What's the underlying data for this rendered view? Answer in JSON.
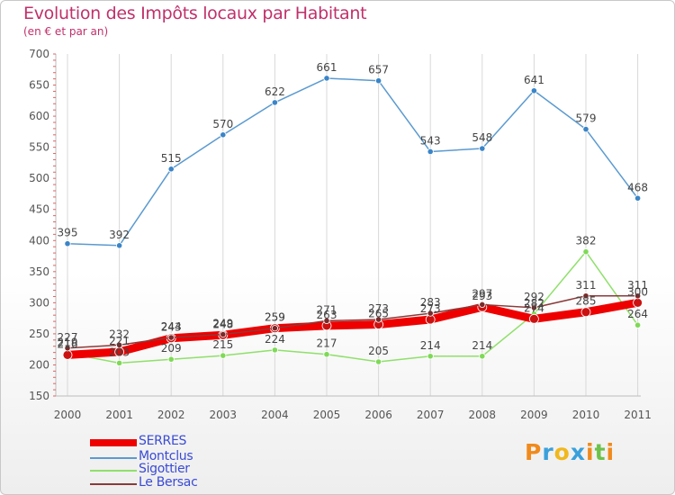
{
  "chart_data": {
    "type": "line",
    "title": "Evolution des Impôts locaux par Habitant",
    "subtitle": "(en € et par an)",
    "categories": [
      "2000",
      "2001",
      "2002",
      "2003",
      "2004",
      "2005",
      "2006",
      "2007",
      "2008",
      "2009",
      "2010",
      "2011"
    ],
    "y_ticks": [
      "150",
      "200",
      "250",
      "300",
      "350",
      "400",
      "450",
      "500",
      "550",
      "600",
      "650",
      "700"
    ],
    "ylim": [
      150,
      700
    ],
    "series": [
      {
        "name": "SERRES",
        "color": "#ee0000",
        "values": [
          216,
          221,
          243,
          248,
          259,
          263,
          265,
          273,
          293,
          274,
          285,
          300
        ]
      },
      {
        "name": "Montclus",
        "color": "#5b9ad0",
        "values": [
          395,
          392,
          515,
          570,
          622,
          661,
          657,
          543,
          548,
          641,
          579,
          468
        ]
      },
      {
        "name": "Sigottier",
        "color": "#8fe06a",
        "values": [
          219,
          203,
          209,
          215,
          224,
          217,
          205,
          214,
          214,
          282,
          382,
          264
        ]
      },
      {
        "name": "Le Bersac",
        "color": "#8b3a3a",
        "values": [
          227,
          232,
          244,
          249,
          259,
          271,
          273,
          283,
          297,
          292,
          311,
          311
        ]
      }
    ]
  },
  "logo": {
    "text": "Proxiti",
    "letters": [
      "P",
      "r",
      "o",
      "x",
      "i",
      "t",
      "i"
    ]
  }
}
